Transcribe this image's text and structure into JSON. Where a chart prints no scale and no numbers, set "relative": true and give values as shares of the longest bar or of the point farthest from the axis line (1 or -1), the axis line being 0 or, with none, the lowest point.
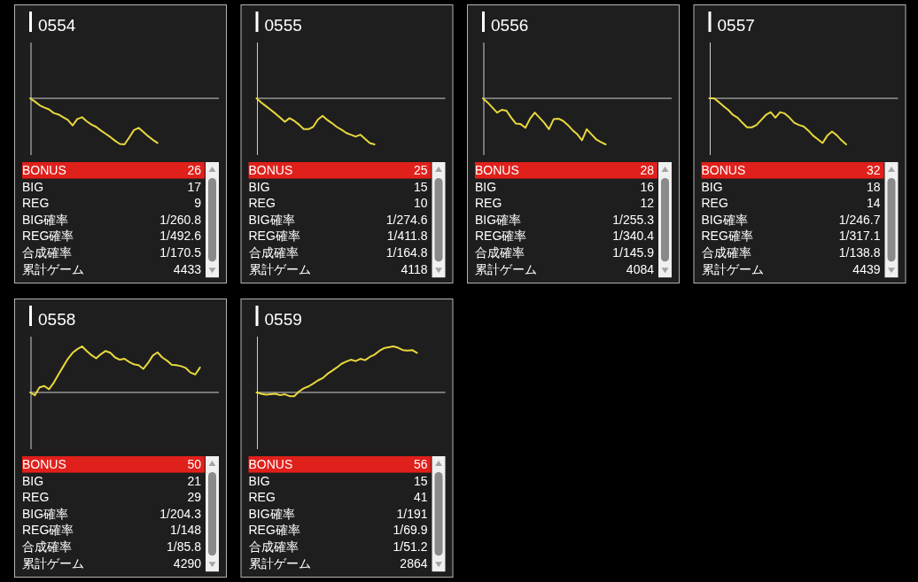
{
  "chart_data": [
    {
      "type": "line",
      "title": "0554",
      "relative": true,
      "color": "#e8d83e",
      "categories": [
        null,
        null,
        null,
        null,
        null,
        null,
        null,
        null,
        null,
        null,
        null,
        null,
        null,
        null,
        null,
        null,
        null,
        null,
        null,
        null,
        null,
        null,
        null,
        null,
        null,
        null,
        null,
        null,
        null,
        null,
        null,
        null,
        null,
        null,
        null,
        null,
        null,
        null,
        null,
        null,
        null
      ],
      "values": [
        0,
        -0.07,
        -0.15,
        -0.2,
        -0.24,
        -0.32,
        -0.35,
        -0.41,
        -0.47,
        -0.59,
        -0.45,
        -0.41,
        -0.5,
        -0.57,
        -0.62,
        -0.7,
        -0.77,
        -0.84,
        -0.92,
        -0.99,
        -1,
        -0.85,
        -0.69,
        -0.64,
        -0.73,
        -0.82,
        -0.9,
        -0.97,
        null,
        null,
        null,
        null,
        null,
        null,
        null,
        null,
        null,
        null,
        null,
        null,
        null
      ]
    },
    {
      "type": "other",
      "categories": [
        "BONUS",
        "BIG",
        "REG",
        "BIG確率",
        "REG確率",
        "合成確率",
        "累計ゲーム"
      ],
      "value_labels": [
        "26",
        "17",
        "9",
        "1/260.8",
        "1/492.6",
        "1/170.5",
        "4433"
      ],
      "colors": [
        "#e0201b",
        null,
        null,
        null,
        null,
        null,
        null
      ]
    },
    {
      "type": "line",
      "title": "0555",
      "relative": true,
      "color": "#e8d83e",
      "categories": [
        null,
        null,
        null,
        null,
        null,
        null,
        null,
        null,
        null,
        null,
        null,
        null,
        null,
        null,
        null,
        null,
        null,
        null,
        null,
        null,
        null,
        null,
        null,
        null,
        null,
        null,
        null,
        null,
        null,
        null,
        null,
        null,
        null,
        null,
        null,
        null,
        null,
        null,
        null,
        null,
        null
      ],
      "values": [
        0,
        -0.09,
        -0.17,
        -0.25,
        -0.33,
        -0.42,
        -0.51,
        -0.43,
        -0.49,
        -0.57,
        -0.67,
        -0.67,
        -0.62,
        -0.46,
        -0.38,
        -0.47,
        -0.54,
        -0.62,
        -0.68,
        -0.75,
        -0.79,
        -0.83,
        -0.79,
        -0.88,
        -0.97,
        -1,
        null,
        null,
        null,
        null,
        null,
        null,
        null,
        null,
        null,
        null,
        null,
        null,
        null,
        null,
        null
      ]
    },
    {
      "type": "other",
      "categories": [
        "BONUS",
        "BIG",
        "REG",
        "BIG確率",
        "REG確率",
        "合成確率",
        "累計ゲーム"
      ],
      "value_labels": [
        "25",
        "15",
        "10",
        "1/274.6",
        "1/411.8",
        "1/164.8",
        "4118"
      ],
      "colors": [
        "#e0201b",
        null,
        null,
        null,
        null,
        null,
        null
      ]
    },
    {
      "type": "line",
      "title": "0556",
      "relative": true,
      "color": "#e8d83e",
      "categories": [
        null,
        null,
        null,
        null,
        null,
        null,
        null,
        null,
        null,
        null,
        null,
        null,
        null,
        null,
        null,
        null,
        null,
        null,
        null,
        null,
        null,
        null,
        null,
        null,
        null,
        null,
        null,
        null,
        null,
        null,
        null,
        null,
        null,
        null,
        null,
        null,
        null,
        null,
        null,
        null,
        null
      ],
      "values": [
        0,
        -0.09,
        -0.2,
        -0.31,
        -0.25,
        -0.27,
        -0.42,
        -0.55,
        -0.56,
        -0.64,
        -0.44,
        -0.31,
        -0.42,
        -0.53,
        -0.67,
        -0.45,
        -0.44,
        -0.49,
        -0.58,
        -0.69,
        -0.78,
        -0.91,
        -0.67,
        -0.78,
        -0.89,
        -0.95,
        -1,
        null,
        null,
        null,
        null,
        null,
        null,
        null,
        null,
        null,
        null,
        null,
        null,
        null,
        null
      ]
    },
    {
      "type": "other",
      "categories": [
        "BONUS",
        "BIG",
        "REG",
        "BIG確率",
        "REG確率",
        "合成確率",
        "累計ゲーム"
      ],
      "value_labels": [
        "28",
        "16",
        "12",
        "1/255.3",
        "1/340.4",
        "1/145.9",
        "4084"
      ],
      "colors": [
        "#e0201b",
        null,
        null,
        null,
        null,
        null,
        null
      ]
    },
    {
      "type": "line",
      "title": "0557",
      "relative": true,
      "color": "#e8d83e",
      "categories": [
        null,
        null,
        null,
        null,
        null,
        null,
        null,
        null,
        null,
        null,
        null,
        null,
        null,
        null,
        null,
        null,
        null,
        null,
        null,
        null,
        null,
        null,
        null,
        null,
        null,
        null,
        null,
        null,
        null,
        null,
        null,
        null,
        null,
        null,
        null,
        null,
        null,
        null,
        null,
        null,
        null
      ],
      "values": [
        0,
        0,
        -0.08,
        -0.17,
        -0.25,
        -0.36,
        -0.42,
        -0.53,
        -0.63,
        -0.63,
        -0.58,
        -0.47,
        -0.36,
        -0.3,
        -0.42,
        -0.3,
        -0.33,
        -0.42,
        -0.53,
        -0.58,
        -0.61,
        -0.7,
        -0.81,
        -0.89,
        -0.97,
        -0.81,
        -0.72,
        -0.8,
        -0.91,
        -1,
        null,
        null,
        null,
        null,
        null,
        null,
        null,
        null,
        null,
        null,
        null
      ]
    },
    {
      "type": "other",
      "categories": [
        "BONUS",
        "BIG",
        "REG",
        "BIG確率",
        "REG確率",
        "合成確率",
        "累計ゲーム"
      ],
      "value_labels": [
        "32",
        "18",
        "14",
        "1/246.7",
        "1/317.1",
        "1/138.8",
        "4439"
      ],
      "colors": [
        "#e0201b",
        null,
        null,
        null,
        null,
        null,
        null
      ]
    },
    {
      "type": "line",
      "title": "0558",
      "relative": true,
      "color": "#e8d83e",
      "categories": [
        null,
        null,
        null,
        null,
        null,
        null,
        null,
        null,
        null,
        null,
        null,
        null,
        null,
        null,
        null,
        null,
        null,
        null,
        null,
        null,
        null,
        null,
        null,
        null,
        null,
        null,
        null,
        null,
        null,
        null,
        null,
        null,
        null,
        null,
        null,
        null,
        null,
        null,
        null,
        null,
        null
      ],
      "values": [
        0,
        -0.06,
        0.11,
        0.14,
        0.07,
        0.21,
        0.39,
        0.56,
        0.73,
        0.86,
        0.94,
        1,
        0.9,
        0.81,
        0.74,
        0.83,
        0.9,
        0.86,
        0.76,
        0.71,
        0.73,
        0.66,
        0.61,
        0.59,
        0.51,
        0.64,
        0.8,
        0.87,
        0.76,
        0.69,
        0.6,
        0.59,
        0.57,
        0.53,
        0.43,
        0.39,
        0.54,
        null,
        null,
        null,
        null
      ]
    },
    {
      "type": "other",
      "categories": [
        "BONUS",
        "BIG",
        "REG",
        "BIG確率",
        "REG確率",
        "合成確率",
        "累計ゲーム"
      ],
      "value_labels": [
        "50",
        "21",
        "29",
        "1/204.3",
        "1/148",
        "1/85.8",
        "4290"
      ],
      "colors": [
        "#e0201b",
        null,
        null,
        null,
        null,
        null,
        null
      ]
    },
    {
      "type": "line",
      "title": "0559",
      "relative": true,
      "color": "#e8d83e",
      "categories": [
        null,
        null,
        null,
        null,
        null,
        null,
        null,
        null,
        null,
        null,
        null,
        null,
        null,
        null,
        null,
        null,
        null,
        null,
        null,
        null,
        null,
        null,
        null,
        null,
        null,
        null,
        null,
        null,
        null,
        null,
        null,
        null,
        null,
        null,
        null,
        null,
        null,
        null,
        null,
        null,
        null
      ],
      "values": [
        0,
        -0.03,
        -0.05,
        -0.04,
        -0.03,
        -0.06,
        -0.04,
        -0.08,
        -0.08,
        0.02,
        0.09,
        0.13,
        0.19,
        0.26,
        0.31,
        0.4,
        0.47,
        0.54,
        0.62,
        0.67,
        0.71,
        0.68,
        0.73,
        0.7,
        0.77,
        0.82,
        0.9,
        0.96,
        0.98,
        1,
        0.97,
        0.92,
        0.91,
        0.92,
        0.86,
        null,
        null,
        null,
        null,
        null,
        null
      ]
    },
    {
      "type": "other",
      "categories": [
        "BONUS",
        "BIG",
        "REG",
        "BIG確率",
        "REG確率",
        "合成確率",
        "累計ゲーム"
      ],
      "value_labels": [
        "56",
        "15",
        "41",
        "1/191",
        "1/69.9",
        "1/51.2",
        "2864"
      ],
      "colors": [
        "#e0201b",
        null,
        null,
        null,
        null,
        null,
        null
      ]
    }
  ]
}
